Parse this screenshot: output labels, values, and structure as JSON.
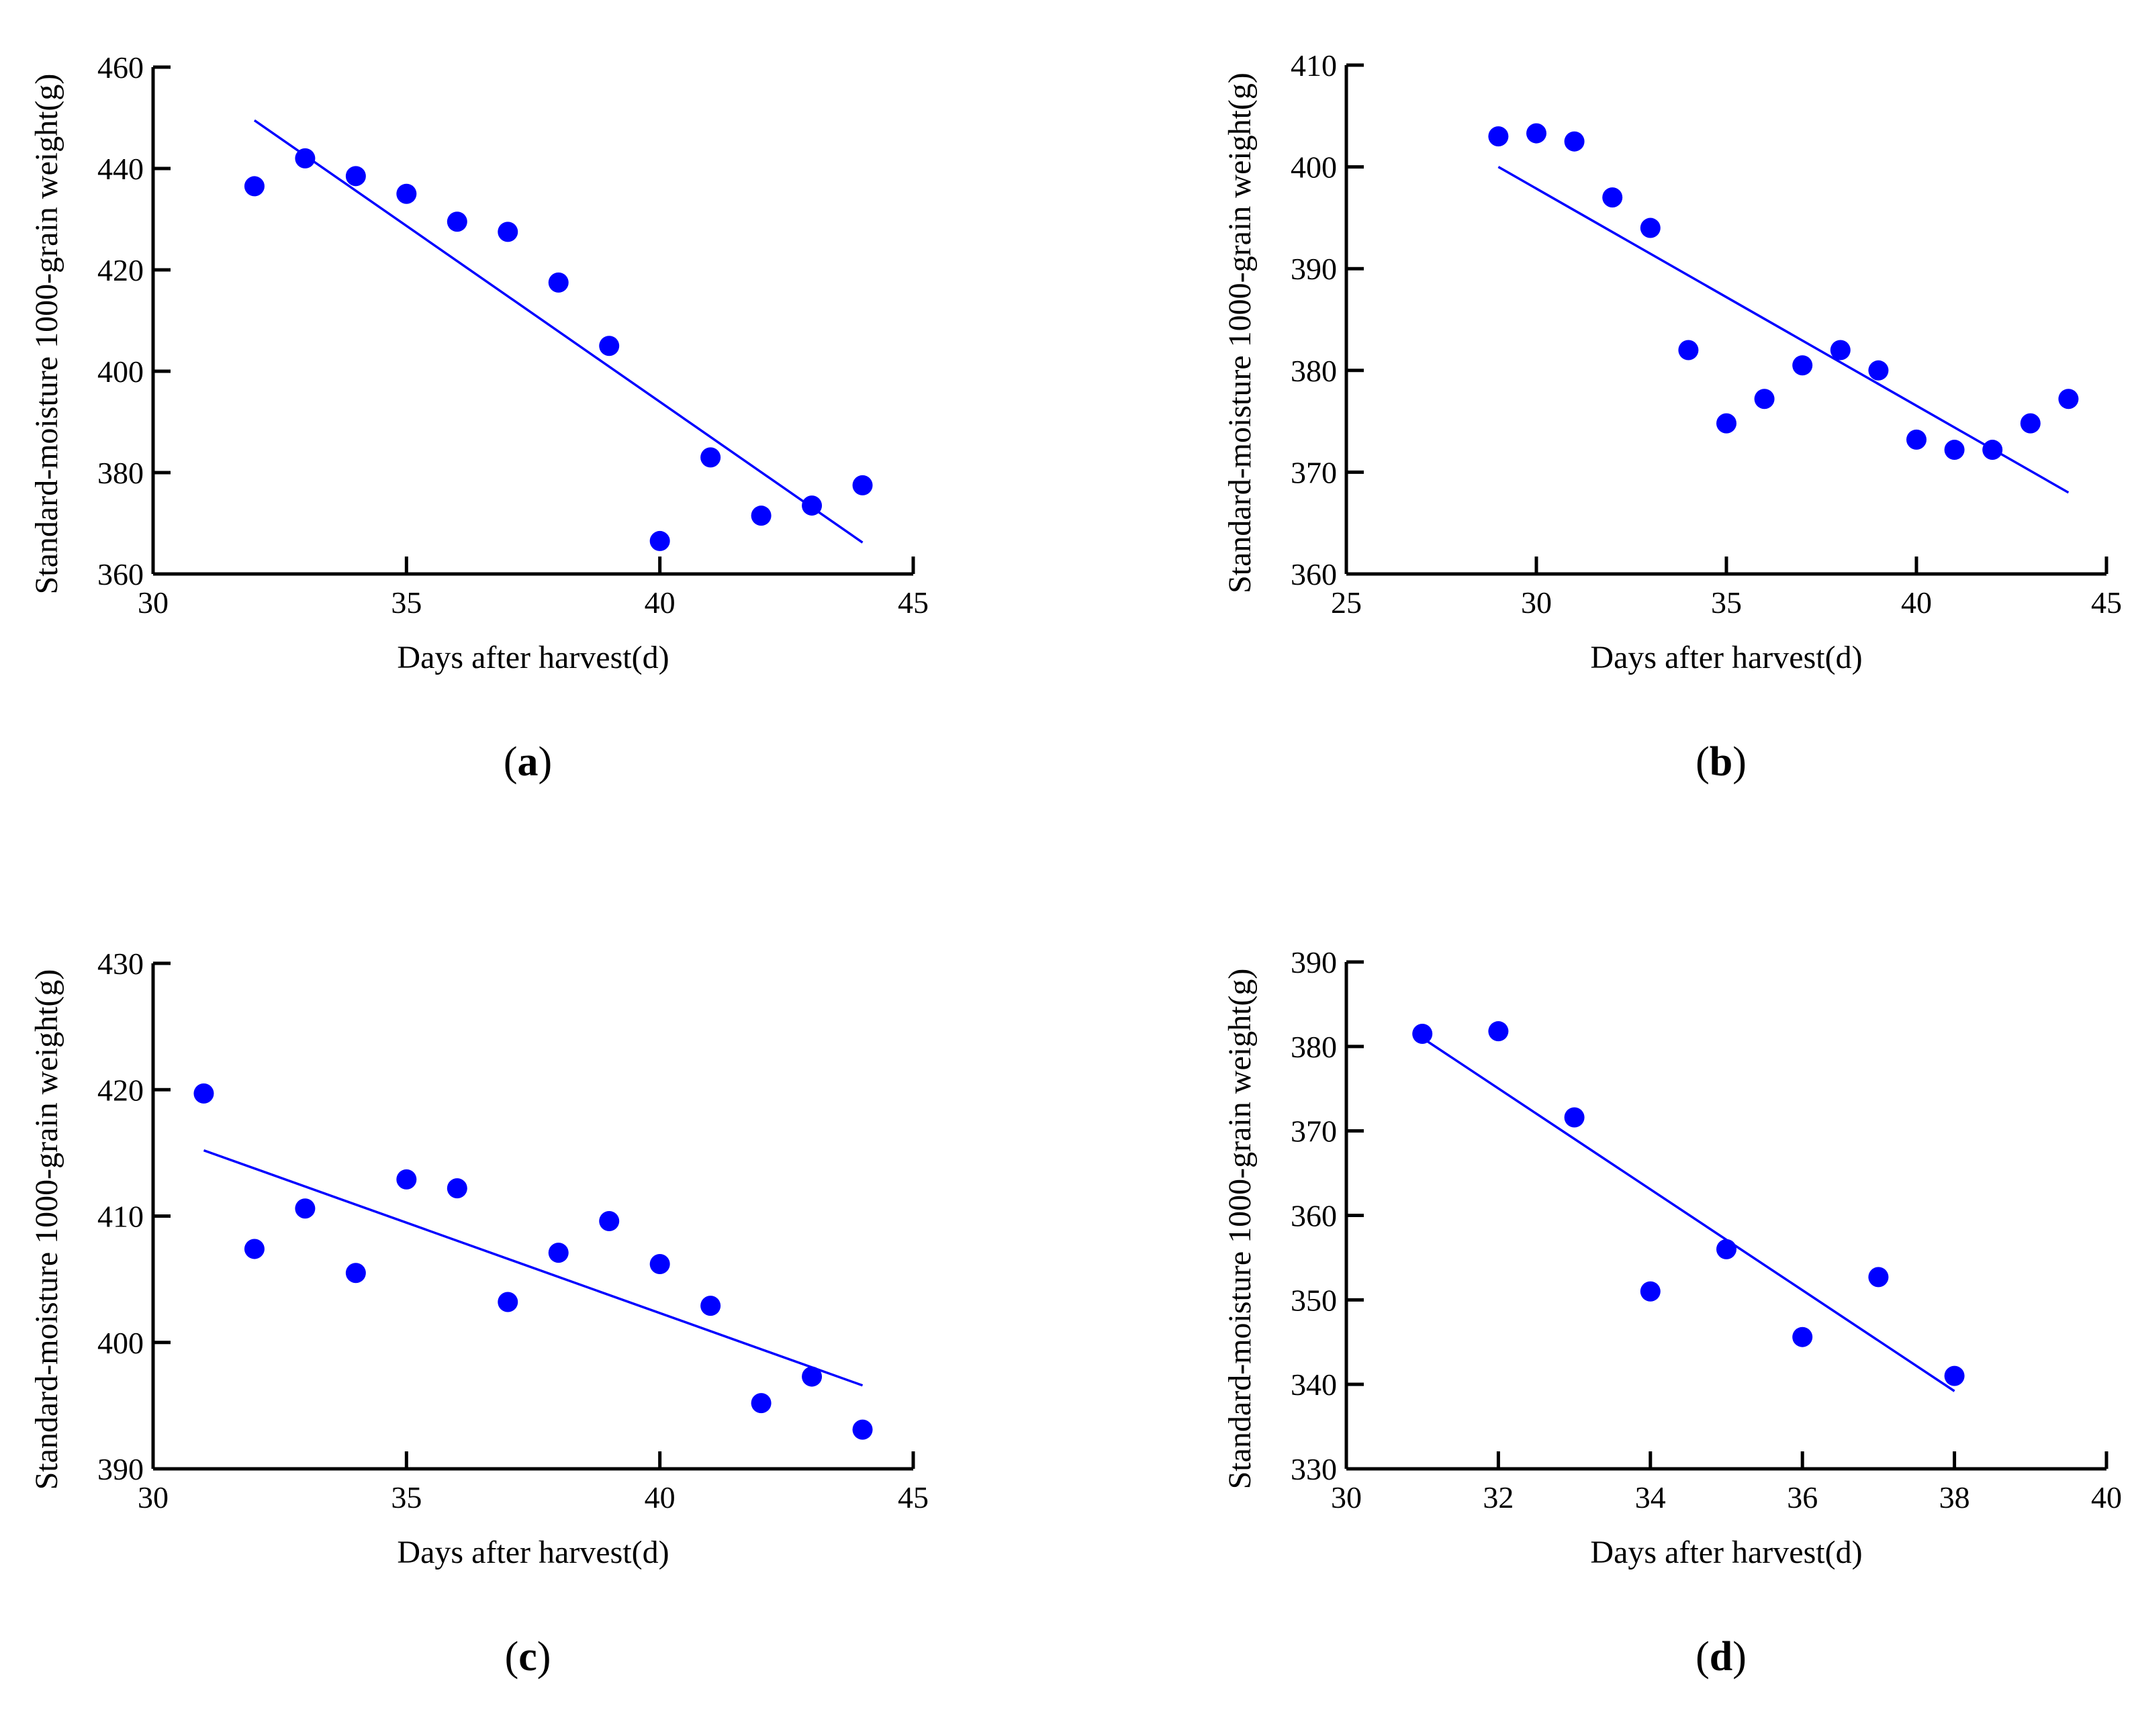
{
  "colors": {
    "points": "#0000ff",
    "fit": "#0000ff",
    "axes": "#000000"
  },
  "chart_data": [
    {
      "type": "scatter",
      "panel": "a",
      "xlabel": "Days after harvest(d)",
      "ylabel": "Standard-moisture 1000-grain weight(g)",
      "xlim": [
        30,
        45
      ],
      "ylim": [
        360,
        460
      ],
      "xticks": [
        30,
        35,
        40,
        45
      ],
      "yticks": [
        360,
        380,
        400,
        420,
        440,
        460
      ],
      "x": [
        32,
        33,
        34,
        35,
        36,
        37,
        38,
        39,
        40,
        41,
        42,
        43,
        44
      ],
      "y": [
        436.5,
        442,
        438.5,
        435,
        429.5,
        427.5,
        417.5,
        405,
        366.5,
        383,
        371.5,
        373.5,
        377.5
      ],
      "fit": {
        "x": [
          32,
          44
        ],
        "y": [
          449.5,
          366.2
        ]
      }
    },
    {
      "type": "scatter",
      "panel": "b",
      "xlabel": "Days after harvest(d)",
      "ylabel": "Standard-moisture 1000-grain weight(g)",
      "xlim": [
        25,
        45
      ],
      "ylim": [
        360,
        410
      ],
      "xticks": [
        25,
        30,
        35,
        40,
        45
      ],
      "yticks": [
        360,
        370,
        380,
        390,
        400,
        410
      ],
      "x": [
        29,
        30,
        31,
        32,
        33,
        34,
        35,
        36,
        37,
        38,
        39,
        40,
        41,
        42,
        43,
        44
      ],
      "y": [
        403,
        403.3,
        402.5,
        397,
        394,
        382,
        374.8,
        377.2,
        380.5,
        382,
        380,
        373.2,
        372.2,
        372.2,
        374.8,
        377.2
      ],
      "fit": {
        "x": [
          29,
          44
        ],
        "y": [
          400,
          368
        ]
      }
    },
    {
      "type": "scatter",
      "panel": "c",
      "xlabel": "Days after harvest(d)",
      "ylabel": "Standard-moisture 1000-grain weight(g)",
      "xlim": [
        30,
        45
      ],
      "ylim": [
        390,
        430
      ],
      "xticks": [
        30,
        35,
        40,
        45
      ],
      "yticks": [
        390,
        400,
        410,
        420,
        430
      ],
      "x": [
        31,
        32,
        33,
        34,
        35,
        36,
        37,
        38,
        39,
        40,
        41,
        42,
        43,
        44
      ],
      "y": [
        419.7,
        407.4,
        410.6,
        405.5,
        412.9,
        412.2,
        403.2,
        407.1,
        409.6,
        406.2,
        402.9,
        395.2,
        397.3,
        393.1
      ],
      "fit": {
        "x": [
          31,
          44
        ],
        "y": [
          415.2,
          396.6
        ]
      }
    },
    {
      "type": "scatter",
      "panel": "d",
      "xlabel": "Days after harvest(d)",
      "ylabel": "Standard-moisture 1000-grain weight(g)",
      "xlim": [
        30,
        40
      ],
      "ylim": [
        330,
        390
      ],
      "xticks": [
        30,
        32,
        34,
        36,
        38,
        40
      ],
      "yticks": [
        330,
        340,
        350,
        360,
        370,
        380,
        390
      ],
      "x": [
        31,
        32,
        33,
        34,
        35,
        36,
        37,
        38
      ],
      "y": [
        381.5,
        381.8,
        371.6,
        351,
        356,
        345.6,
        352.7,
        341
      ],
      "fit": {
        "x": [
          31,
          38
        ],
        "y": [
          381,
          339.2
        ]
      }
    }
  ]
}
